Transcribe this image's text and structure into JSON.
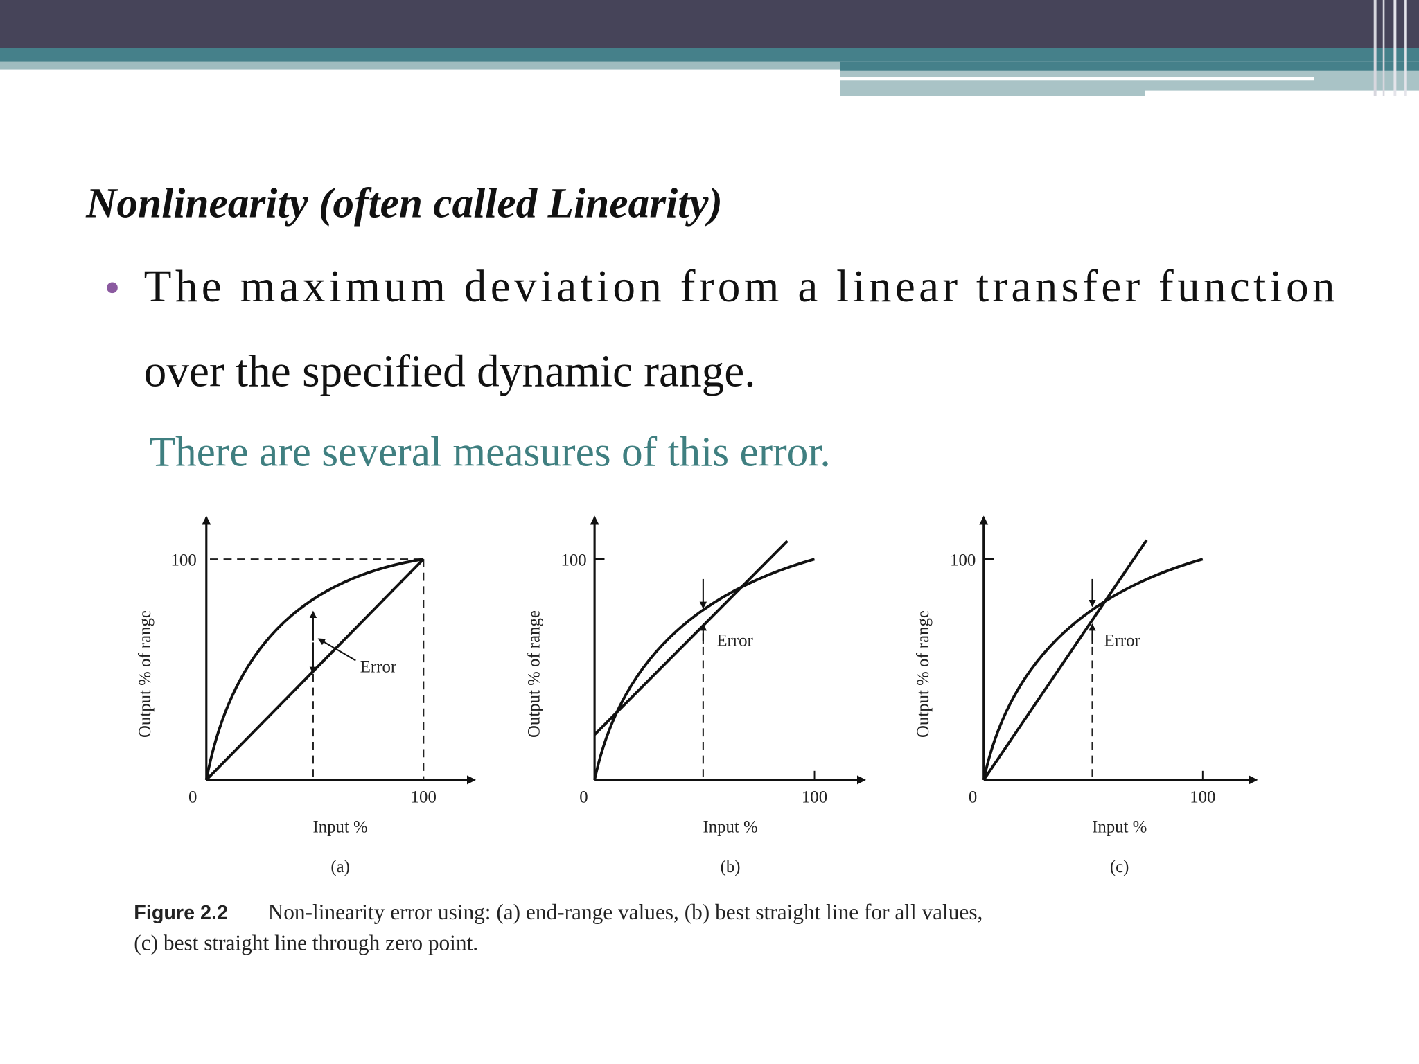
{
  "header": {
    "title": "Nonlinearity (often called Linearity)"
  },
  "bullets": [
    {
      "lines": [
        "The maximum deviation from a linear transfer function",
        "over the specified dynamic range."
      ]
    }
  ],
  "note": "There are several measures of this error.",
  "figure": {
    "panels": [
      {
        "y_label": "Output % of range",
        "x_label": "Input %",
        "y_tick": "100",
        "x_ticks": [
          "0",
          "100"
        ],
        "annotation": "Error",
        "caption": "(a)"
      },
      {
        "y_label": "Output % of range",
        "x_label": "Input %",
        "y_tick": "100",
        "x_ticks": [
          "0",
          "100"
        ],
        "annotation": "Error",
        "caption": "(b)"
      },
      {
        "y_label": "Output % of range",
        "x_label": "Input %",
        "y_tick": "100",
        "x_ticks": [
          "0",
          "100"
        ],
        "annotation": "Error",
        "caption": "(c)"
      }
    ],
    "caption_label": "Figure 2.2",
    "caption_lines": [
      "Non-linearity error using: (a) end-range values, (b) best straight line for all values,",
      "(c) best straight line through zero point."
    ]
  }
}
